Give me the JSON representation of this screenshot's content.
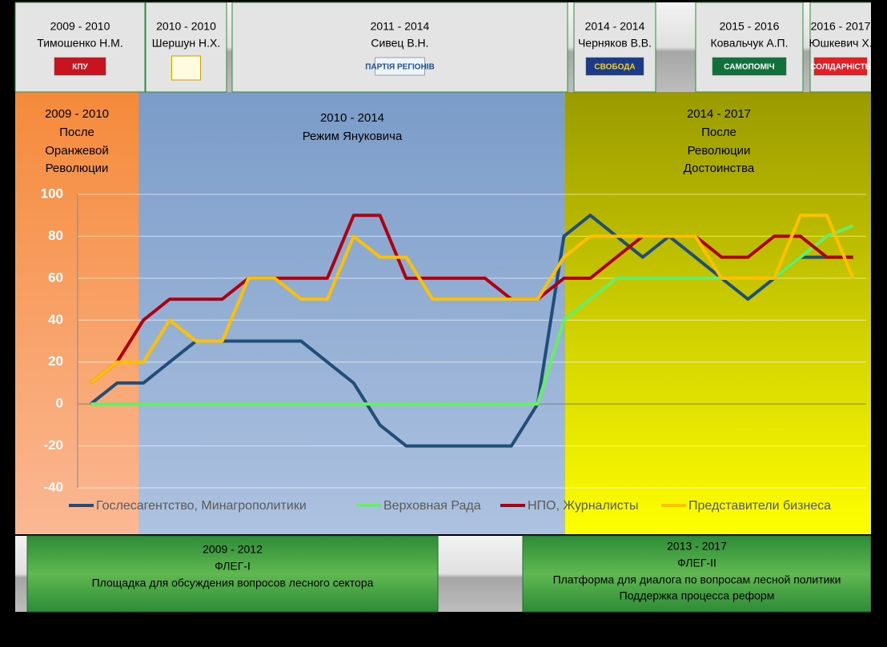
{
  "header": [
    {
      "years": "2009 - 2010",
      "name": "Тимошенко Н.М.",
      "logo": "КПУ"
    },
    {
      "years": "2010 - 2010",
      "name": "Шершун Н.Х."
    },
    {
      "years": "2011 - 2014",
      "name": "Сивец В.Н.",
      "logo": "ПАРТІЯ РЕГІОНІВ"
    },
    {
      "years": "2014 - 2014",
      "name": "Черняков В.В.",
      "logo": "СВОБОДА"
    },
    {
      "years": "2015 - 2016",
      "name": "Ковальчук А.П.",
      "logo": "САМОПОМІЧ"
    },
    {
      "years": "2016 - 2017",
      "name": "Юшкевич Х.",
      "logo": "СОЛІДАРНІСТЬ"
    }
  ],
  "periods": [
    [
      "2009 - 2010",
      "После",
      "Оранжевой",
      "Революции"
    ],
    [
      "2010 - 2014",
      "Режим Януковича"
    ],
    [
      "2014 - 2017",
      "После",
      "Революции",
      "Достоинства"
    ]
  ],
  "footer": [
    [
      "2009 - 2012",
      "ФЛЕГ-I",
      "Площадка для обсуждения вопросов лесного сектора"
    ],
    [
      "2013 - 2017",
      "ФЛЕГ-II",
      "Платформа для диалога по вопросам лесной политики",
      "Поддержка процесса реформ"
    ]
  ],
  "chart_data": {
    "type": "line",
    "categories": [
      null,
      null,
      null,
      null,
      null,
      null,
      null,
      null,
      null,
      null,
      null,
      null,
      null,
      null,
      null,
      null,
      null,
      null,
      null,
      null,
      null,
      null,
      null,
      null,
      null,
      null,
      null,
      null,
      null,
      null
    ],
    "series": [
      {
        "name": "Гослесагентство, Минагрополитики",
        "color": "#1f4e79",
        "values": [
          0,
          10,
          10,
          20,
          30,
          30,
          30,
          30,
          30,
          20,
          10,
          -10,
          -20,
          -20,
          -20,
          -20,
          -20,
          0,
          80,
          90,
          80,
          70,
          80,
          70,
          60,
          50,
          60,
          70,
          70,
          70
        ]
      },
      {
        "name": "Верховная Рада",
        "color": "#66ee66",
        "values": [
          0,
          0,
          0,
          0,
          0,
          0,
          0,
          0,
          0,
          0,
          0,
          0,
          0,
          0,
          0,
          0,
          0,
          0,
          40,
          50,
          60,
          60,
          60,
          60,
          60,
          60,
          60,
          70,
          80,
          85
        ]
      },
      {
        "name": "НПО, Журналисты",
        "color": "#b00010",
        "values": [
          10,
          20,
          40,
          50,
          50,
          50,
          60,
          60,
          60,
          60,
          90,
          90,
          60,
          60,
          60,
          60,
          50,
          50,
          60,
          60,
          70,
          80,
          80,
          80,
          70,
          70,
          80,
          80,
          70,
          70
        ]
      },
      {
        "name": "Представители бизнеса",
        "color": "#ffc000",
        "values": [
          10,
          20,
          20,
          40,
          30,
          30,
          60,
          60,
          50,
          50,
          80,
          70,
          70,
          50,
          50,
          50,
          50,
          50,
          70,
          80,
          80,
          80,
          80,
          80,
          60,
          60,
          60,
          90,
          90,
          60
        ]
      }
    ],
    "ylim": [
      -40,
      100
    ],
    "yticks": [
      -40,
      -20,
      0,
      20,
      40,
      60,
      80,
      100
    ],
    "grid": true
  }
}
